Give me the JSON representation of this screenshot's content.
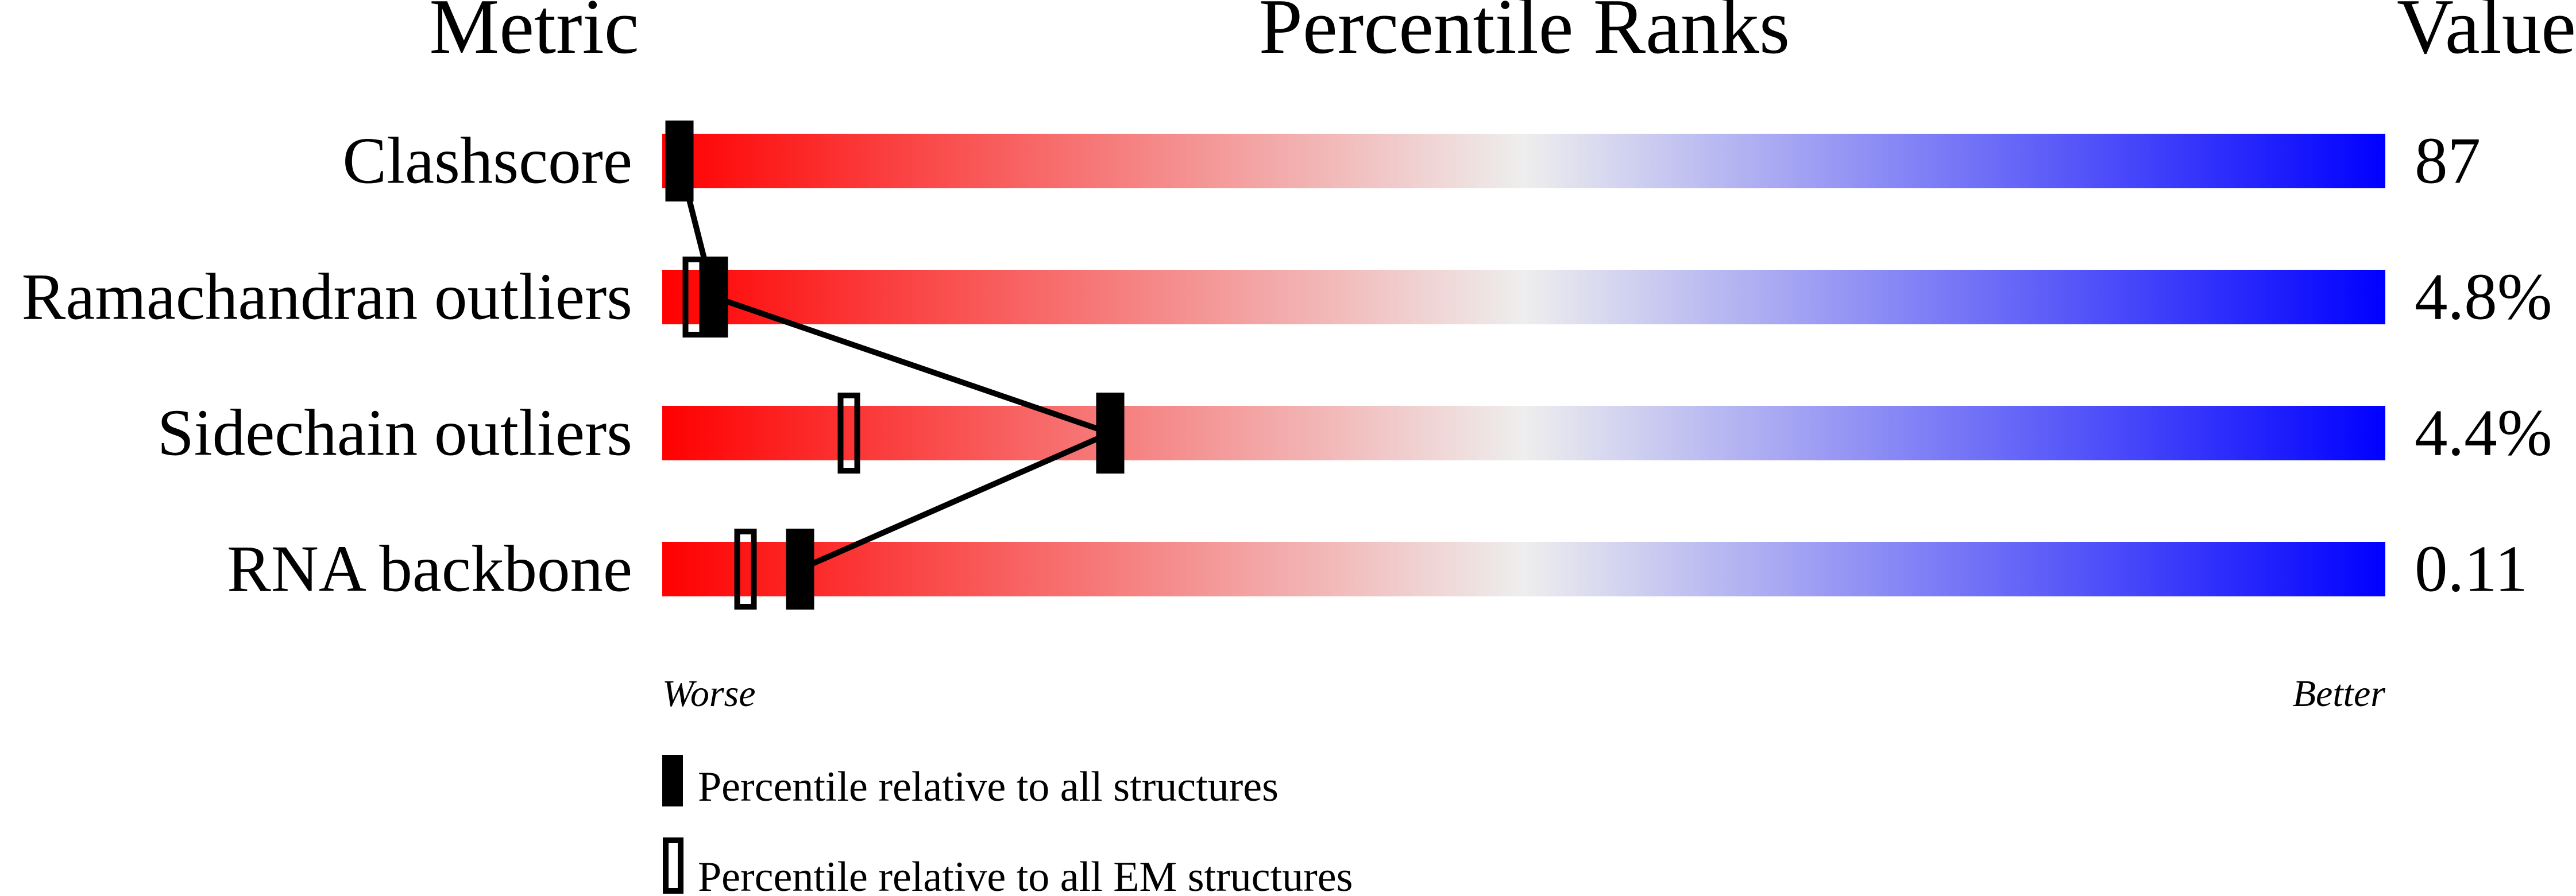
{
  "chart_data": {
    "type": "bar",
    "headers": {
      "metric": "Metric",
      "ranks": "Percentile Ranks",
      "value": "Value"
    },
    "categories": [
      "Clashscore",
      "Ramachandran outliers",
      "Sidechain outliers",
      "RNA backbone"
    ],
    "values": [
      "87",
      "4.8%",
      "4.4%",
      "0.11"
    ],
    "series": [
      {
        "name": "Percentile relative to all structures",
        "style": "filled",
        "values": [
          1,
          3,
          26,
          8
        ]
      },
      {
        "name": "Percentile relative to all EM structures",
        "style": "open",
        "values": [
          null,
          2,
          11,
          5
        ]
      }
    ],
    "xlim": [
      0,
      100
    ],
    "axis_left_label": "Worse",
    "axis_right_label": "Better",
    "gradient_colors": [
      "#ff0000",
      "#eeeeee",
      "#0000ff"
    ],
    "legend_placement": "bottom"
  }
}
